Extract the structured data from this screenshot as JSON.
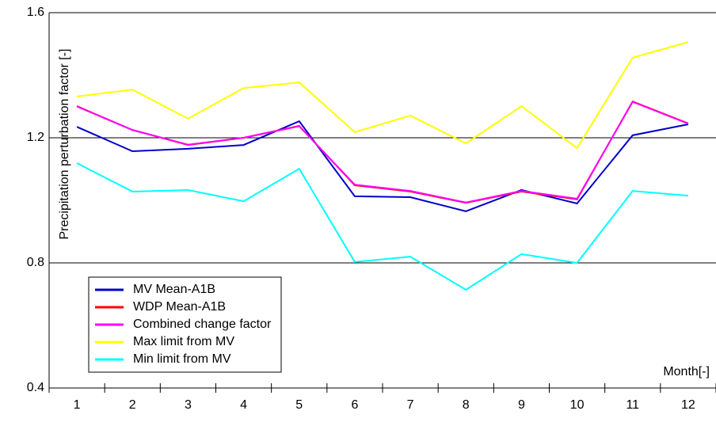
{
  "chart_data": {
    "type": "line",
    "y_label": "Precipitation perturbation factor [-]",
    "x_label": "Month[-]",
    "categories": [
      "1",
      "2",
      "3",
      "4",
      "5",
      "6",
      "7",
      "8",
      "9",
      "10",
      "11",
      "12"
    ],
    "series": [
      {
        "name": "MV Mean-A1B",
        "color": "#0000cc",
        "values": [
          1.235,
          1.157,
          1.165,
          1.177,
          1.253,
          1.013,
          1.01,
          0.965,
          1.033,
          0.99,
          1.208,
          1.243
        ]
      },
      {
        "name": "WDP Mean-A1B",
        "color": "#ff0000",
        "values": [
          1.301,
          1.225,
          1.177,
          1.2,
          1.238,
          1.048,
          1.028,
          0.992,
          1.028,
          1.003,
          1.316,
          1.246
        ]
      },
      {
        "name": "Combined change factor",
        "color": "#ff00ff",
        "values": [
          1.3,
          1.225,
          1.178,
          1.2,
          1.237,
          1.05,
          1.03,
          0.993,
          1.03,
          1.005,
          1.315,
          1.245
        ]
      },
      {
        "name": "Max limit from MV",
        "color": "#ffff00",
        "values": [
          1.332,
          1.354,
          1.261,
          1.359,
          1.377,
          1.218,
          1.271,
          1.182,
          1.301,
          1.167,
          1.456,
          1.506
        ]
      },
      {
        "name": "Min limit from MV",
        "color": "#00ffff",
        "values": [
          1.119,
          1.028,
          1.033,
          0.997,
          1.101,
          0.803,
          0.82,
          0.714,
          0.828,
          0.8,
          1.03,
          1.015
        ]
      }
    ],
    "ylim": [
      0.4,
      1.6
    ],
    "yticks": [
      {
        "value": 0.4,
        "label": "0.4"
      },
      {
        "value": 0.8,
        "label": "0.8"
      },
      {
        "value": 1.2,
        "label": "1.2"
      },
      {
        "value": 1.6,
        "label": "1.6"
      }
    ],
    "grid": true
  }
}
